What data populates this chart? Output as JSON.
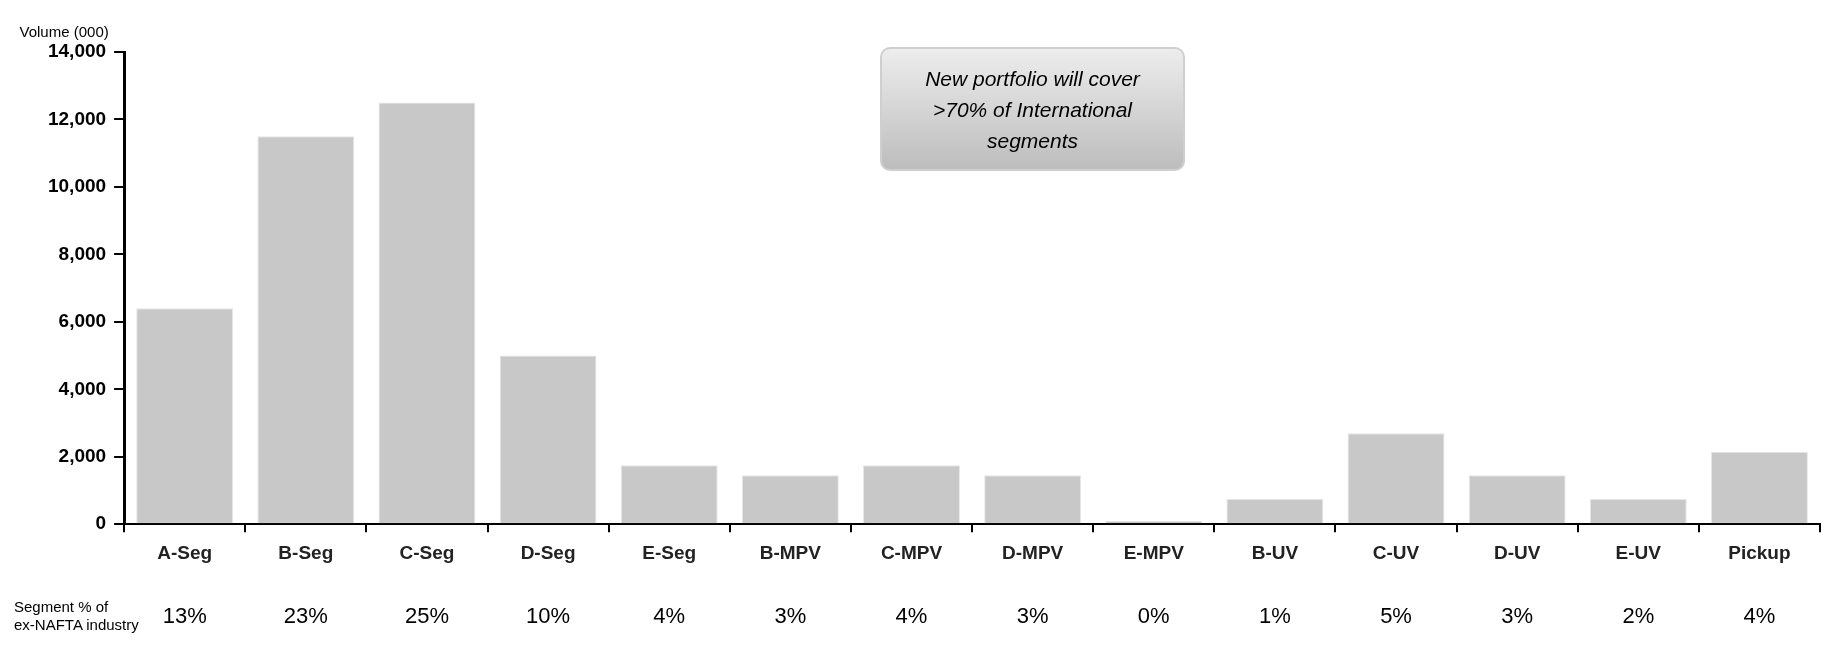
{
  "chart_data": {
    "type": "bar",
    "ylabel": "Volume (000)",
    "categories": [
      "A-Seg",
      "B-Seg",
      "C-Seg",
      "D-Seg",
      "E-Seg",
      "B-MPV",
      "C-MPV",
      "D-MPV",
      "E-MPV",
      "B-UV",
      "C-UV",
      "D-UV",
      "E-UV",
      "Pickup"
    ],
    "values": [
      6400,
      11500,
      12500,
      5000,
      1750,
      1450,
      1750,
      1450,
      100,
      750,
      2700,
      1450,
      750,
      2150
    ],
    "color": "#c8c8c8",
    "ylim": [
      0,
      14000
    ],
    "yticks": [
      {
        "value": 0,
        "label": "0"
      },
      {
        "value": 2000,
        "label": "2,000"
      },
      {
        "value": 4000,
        "label": "4,000"
      },
      {
        "value": 6000,
        "label": "6,000"
      },
      {
        "value": 8000,
        "label": "8,000"
      },
      {
        "value": 10000,
        "label": "10,000"
      },
      {
        "value": 12000,
        "label": "12,000"
      },
      {
        "value": 14000,
        "label": "14,000"
      }
    ],
    "grid": false,
    "legend": false,
    "annotations": [
      "New portfolio will cover >70% of International segments",
      "Segment % of ex-NAFTA industry",
      "13%",
      "23%",
      "25%",
      "10%",
      "4%",
      "3%",
      "4%",
      "3%",
      "0%",
      "1%",
      "5%",
      "3%",
      "2%",
      "4%"
    ]
  }
}
